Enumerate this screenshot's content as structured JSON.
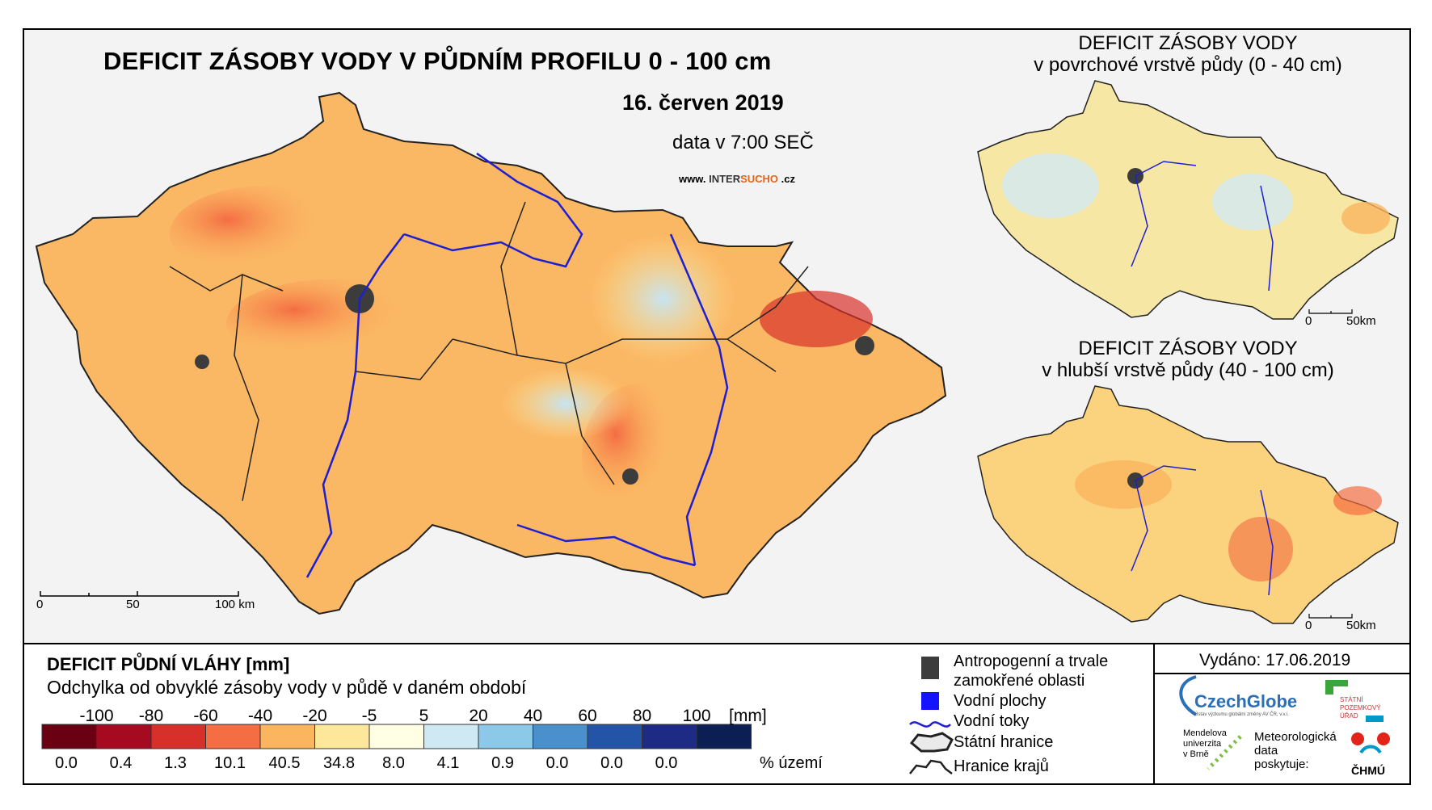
{
  "main_map": {
    "title": "DEFICIT ZÁSOBY VODY V PŮDNÍM PROFILU 0 - 100 cm",
    "date": "16. červen 2019",
    "data_time": "data v 7:00 SEČ",
    "website_prefix": "www.",
    "website_brand_1": "INTER",
    "website_brand_2": "SUCHO",
    "website_suffix": ".cz",
    "scale_labels": [
      "0",
      "50",
      "100 km"
    ]
  },
  "inset_top": {
    "title_line1": "DEFICIT ZÁSOBY VODY",
    "title_line2": "v povrchové vrstvě půdy (0 - 40 cm)",
    "scale_labels": [
      "0",
      "50km"
    ]
  },
  "inset_bottom": {
    "title_line1": "DEFICIT ZÁSOBY VODY",
    "title_line2": "v hlubší vrstvě půdy (40 - 100 cm)",
    "scale_labels": [
      "0",
      "50km"
    ]
  },
  "legend": {
    "heading": "DEFICIT PŮDNÍ VLÁHY [mm]",
    "subheading": "Odchylka od obvyklé zásoby vody v půdě v daném období",
    "tick_labels": [
      "-100",
      "-80",
      "-60",
      "-40",
      "-20",
      "-5",
      "5",
      "20",
      "40",
      "60",
      "80",
      "100"
    ],
    "unit_label": "[mm]",
    "colors": [
      "#6b0013",
      "#a50a21",
      "#d7302b",
      "#f46d43",
      "#fbb55e",
      "#fde79a",
      "#ffffe3",
      "#cfe9f4",
      "#8cc8e8",
      "#4a90cc",
      "#2454a8",
      "#1d2b84",
      "#0c1f55"
    ],
    "percentages": [
      "0.0",
      "0.4",
      "1.3",
      "10.1",
      "40.5",
      "34.8",
      "8.0",
      "4.1",
      "0.9",
      "0.0",
      "0.0",
      "0.0"
    ],
    "pct_unit": "% území"
  },
  "symbols": {
    "anthropogenic_line1": "Antropogenní a trvale",
    "anthropogenic_line2": "zamokřené oblasti",
    "water_bodies": "Vodní plochy",
    "rivers": "Vodní toky",
    "state_border": "Státní hranice",
    "region_border": "Hranice krajů",
    "anthropogenic_color": "#3c3c3c",
    "water_color": "#1414ff",
    "river_color": "#1e1ed2"
  },
  "issued": "Vydáno: 17.06.2019",
  "logos": {
    "czechglobe": "CzechGlobe",
    "czechglobe_sub": "Ústav výzkumu globální změny AV ČR, v.v.i.",
    "spu_line1": "STÁTNÍ",
    "spu_line2": "POZEMKOVÝ",
    "spu_line3": "ÚŘAD",
    "mendel_line1": "Mendelova",
    "mendel_line2": "univerzita",
    "mendel_line3": "v Brně",
    "meteo_line1": "Meteorologická",
    "meteo_line2": "data",
    "meteo_line3": "poskytuje:",
    "chmu": "ČHMÚ"
  }
}
